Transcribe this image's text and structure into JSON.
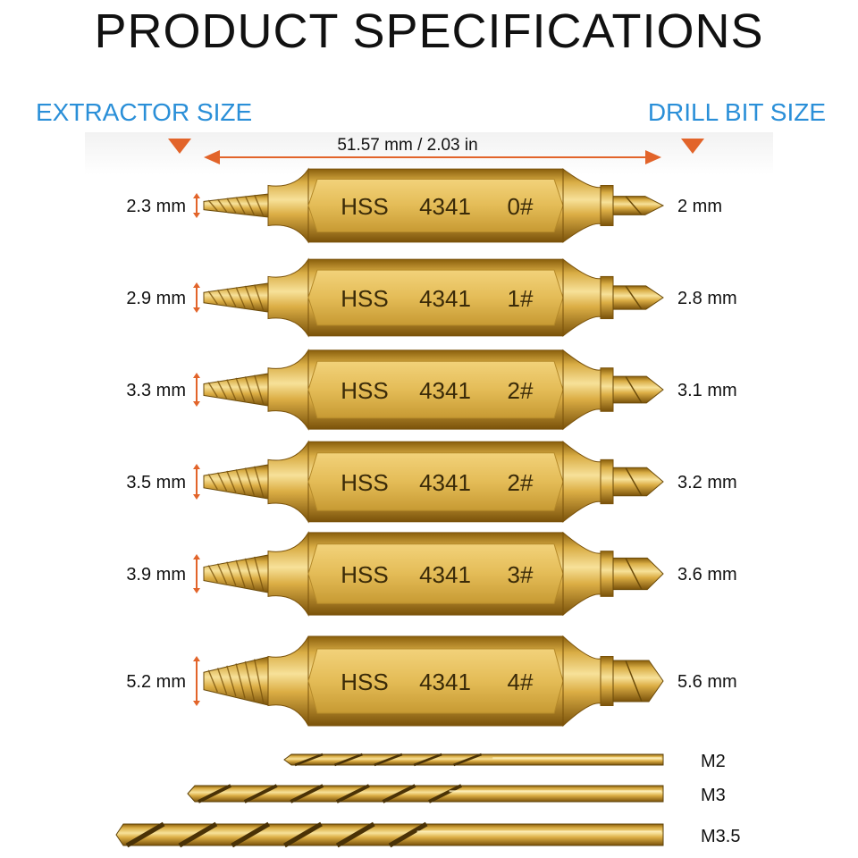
{
  "title": "PRODUCT SPECIFICATIONS",
  "headers": {
    "extractor": "EXTRACTOR SIZE",
    "drill_bit": "DRILL BIT SIZE"
  },
  "overall_length": "51.57 mm / 2.03 in",
  "colors": {
    "accent_blue": "#2a8fd8",
    "arrow_orange": "#e2642a",
    "gold_dark": "#9a6f12",
    "gold_mid": "#d8ab3e",
    "gold_light": "#f6dc86"
  },
  "bits": [
    {
      "extractor_size": "2.3 mm",
      "marking": [
        "HSS",
        "4341",
        "0#"
      ],
      "drill_size": "2 mm",
      "scale": 0.3
    },
    {
      "extractor_size": "2.9 mm",
      "marking": [
        "HSS",
        "4341",
        "1#"
      ],
      "drill_size": "2.8 mm",
      "scale": 0.45
    },
    {
      "extractor_size": "3.3 mm",
      "marking": [
        "HSS",
        "4341",
        "2#"
      ],
      "drill_size": "3.1 mm",
      "scale": 0.55
    },
    {
      "extractor_size": "3.5 mm",
      "marking": [
        "HSS",
        "4341",
        "2#"
      ],
      "drill_size": "3.2 mm",
      "scale": 0.6
    },
    {
      "extractor_size": "3.9 mm",
      "marking": [
        "HSS",
        "4341",
        "3#"
      ],
      "drill_size": "3.6 mm",
      "scale": 0.7
    },
    {
      "extractor_size": "5.2 mm",
      "marking": [
        "HSS",
        "4341",
        "4#"
      ],
      "drill_size": "5.6 mm",
      "scale": 1.0
    }
  ],
  "twist_drills": [
    {
      "label": "M2"
    },
    {
      "label": "M3"
    },
    {
      "label": "M3.5"
    }
  ]
}
